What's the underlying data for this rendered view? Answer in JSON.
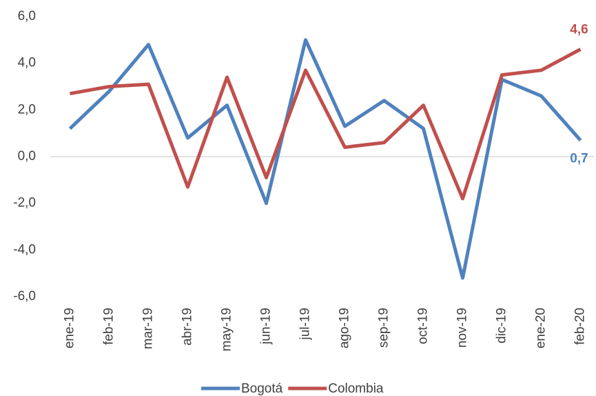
{
  "chart_data": {
    "type": "line",
    "categories": [
      "ene-19",
      "feb-19",
      "mar-19",
      "abr-19",
      "may-19",
      "jun-19",
      "jul-19",
      "ago-19",
      "sep-19",
      "oct-19",
      "nov-19",
      "dic-19",
      "ene-20",
      "feb-20"
    ],
    "series": [
      {
        "name": "Bogotá",
        "color": "#4f81bd",
        "values": [
          1.2,
          2.8,
          4.8,
          0.8,
          2.2,
          -2.0,
          5.0,
          1.3,
          2.4,
          1.2,
          -5.2,
          3.3,
          2.6,
          0.7
        ],
        "value_labels": [
          null,
          null,
          null,
          null,
          null,
          null,
          null,
          null,
          null,
          null,
          null,
          null,
          null,
          "0,7"
        ]
      },
      {
        "name": "Colombia",
        "color": "#c0504d",
        "values": [
          2.7,
          3.0,
          3.1,
          -1.3,
          3.4,
          -0.9,
          3.7,
          0.4,
          0.6,
          2.2,
          -1.8,
          3.5,
          3.7,
          4.6
        ],
        "value_labels": [
          null,
          null,
          null,
          null,
          null,
          null,
          null,
          null,
          null,
          null,
          null,
          null,
          null,
          "4,6"
        ]
      }
    ],
    "ylim": [
      -6,
      6
    ],
    "yticks": [
      {
        "value": 6,
        "label": "6,0"
      },
      {
        "value": 4,
        "label": "4,0"
      },
      {
        "value": 2,
        "label": "2,0"
      },
      {
        "value": 0,
        "label": "0,0"
      },
      {
        "value": -2,
        "label": "-2,0"
      },
      {
        "value": -4,
        "label": "-4,0"
      },
      {
        "value": -6,
        "label": "-6,0"
      }
    ],
    "legend": "bottom"
  }
}
